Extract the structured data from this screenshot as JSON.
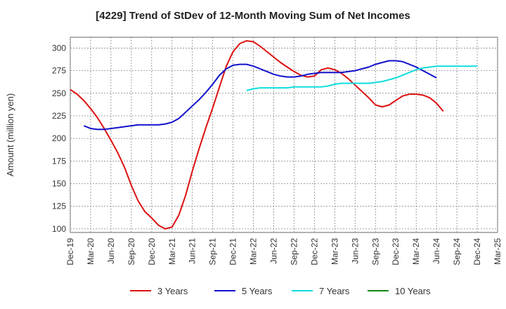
{
  "chart_data": {
    "type": "line",
    "title": "[4229]  Trend of StDev of 12-Month Moving Sum of Net Incomes",
    "ylabel": "Amount (million yen)",
    "xlabel": "",
    "ylim": [
      96,
      312
    ],
    "yticks": [
      100,
      125,
      150,
      175,
      200,
      225,
      250,
      275,
      300
    ],
    "x_ticks": [
      "Dec-19",
      "Mar-20",
      "Jun-20",
      "Sep-20",
      "Dec-20",
      "Mar-21",
      "Jun-21",
      "Sep-21",
      "Dec-21",
      "Mar-22",
      "Jun-22",
      "Sep-22",
      "Dec-22",
      "Mar-23",
      "Jun-23",
      "Sep-23",
      "Dec-23",
      "Mar-24",
      "Jun-24",
      "Sep-24",
      "Dec-24",
      "Mar-25"
    ],
    "grid": true,
    "legend_position": "bottom",
    "series": [
      {
        "name": "3 Years",
        "color": "#dd1111",
        "values": [
          {
            "x": "Dec-19",
            "y": 254
          },
          {
            "x": "Jan-20",
            "y": 249
          },
          {
            "x": "Feb-20",
            "y": 242
          },
          {
            "x": "Mar-20",
            "y": 233
          },
          {
            "x": "Apr-20",
            "y": 223
          },
          {
            "x": "May-20",
            "y": 211
          },
          {
            "x": "Jun-20",
            "y": 198
          },
          {
            "x": "Jul-20",
            "y": 184
          },
          {
            "x": "Aug-20",
            "y": 168
          },
          {
            "x": "Sep-20",
            "y": 148
          },
          {
            "x": "Oct-20",
            "y": 131
          },
          {
            "x": "Nov-20",
            "y": 119
          },
          {
            "x": "Dec-20",
            "y": 112
          },
          {
            "x": "Jan-21",
            "y": 104
          },
          {
            "x": "Feb-21",
            "y": 100
          },
          {
            "x": "Mar-21",
            "y": 102
          },
          {
            "x": "Apr-21",
            "y": 115
          },
          {
            "x": "May-21",
            "y": 137
          },
          {
            "x": "Jun-21",
            "y": 164
          },
          {
            "x": "Jul-21",
            "y": 189
          },
          {
            "x": "Aug-21",
            "y": 212
          },
          {
            "x": "Sep-21",
            "y": 234
          },
          {
            "x": "Oct-21",
            "y": 257
          },
          {
            "x": "Nov-21",
            "y": 280
          },
          {
            "x": "Dec-21",
            "y": 296
          },
          {
            "x": "Jan-22",
            "y": 305
          },
          {
            "x": "Feb-22",
            "y": 308
          },
          {
            "x": "Mar-22",
            "y": 307
          },
          {
            "x": "Apr-22",
            "y": 302
          },
          {
            "x": "May-22",
            "y": 296
          },
          {
            "x": "Jun-22",
            "y": 290
          },
          {
            "x": "Jul-22",
            "y": 284
          },
          {
            "x": "Aug-22",
            "y": 279
          },
          {
            "x": "Sep-22",
            "y": 274
          },
          {
            "x": "Oct-22",
            "y": 270
          },
          {
            "x": "Nov-22",
            "y": 268
          },
          {
            "x": "Dec-22",
            "y": 269
          },
          {
            "x": "Jan-23",
            "y": 276
          },
          {
            "x": "Feb-23",
            "y": 278
          },
          {
            "x": "Mar-23",
            "y": 276
          },
          {
            "x": "Apr-23",
            "y": 272
          },
          {
            "x": "May-23",
            "y": 266
          },
          {
            "x": "Jun-23",
            "y": 259
          },
          {
            "x": "Jul-23",
            "y": 252
          },
          {
            "x": "Aug-23",
            "y": 245
          },
          {
            "x": "Sep-23",
            "y": 237
          },
          {
            "x": "Oct-23",
            "y": 235
          },
          {
            "x": "Nov-23",
            "y": 237
          },
          {
            "x": "Dec-23",
            "y": 242
          },
          {
            "x": "Jan-24",
            "y": 247
          },
          {
            "x": "Feb-24",
            "y": 249
          },
          {
            "x": "Mar-24",
            "y": 249
          },
          {
            "x": "Apr-24",
            "y": 248
          },
          {
            "x": "May-24",
            "y": 245
          },
          {
            "x": "Jun-24",
            "y": 239
          },
          {
            "x": "Jul-24",
            "y": 230
          }
        ]
      },
      {
        "name": "5 Years",
        "color": "#1111cc",
        "values": [
          {
            "x": "Feb-20",
            "y": 214
          },
          {
            "x": "Mar-20",
            "y": 211
          },
          {
            "x": "Apr-20",
            "y": 210
          },
          {
            "x": "May-20",
            "y": 210
          },
          {
            "x": "Jun-20",
            "y": 211
          },
          {
            "x": "Jul-20",
            "y": 212
          },
          {
            "x": "Aug-20",
            "y": 213
          },
          {
            "x": "Sep-20",
            "y": 214
          },
          {
            "x": "Oct-20",
            "y": 215
          },
          {
            "x": "Nov-20",
            "y": 215
          },
          {
            "x": "Dec-20",
            "y": 215
          },
          {
            "x": "Jan-21",
            "y": 215
          },
          {
            "x": "Feb-21",
            "y": 216
          },
          {
            "x": "Mar-21",
            "y": 218
          },
          {
            "x": "Apr-21",
            "y": 222
          },
          {
            "x": "May-21",
            "y": 229
          },
          {
            "x": "Jun-21",
            "y": 236
          },
          {
            "x": "Jul-21",
            "y": 243
          },
          {
            "x": "Aug-21",
            "y": 251
          },
          {
            "x": "Sep-21",
            "y": 260
          },
          {
            "x": "Oct-21",
            "y": 270
          },
          {
            "x": "Nov-21",
            "y": 277
          },
          {
            "x": "Dec-21",
            "y": 281
          },
          {
            "x": "Jan-22",
            "y": 282
          },
          {
            "x": "Feb-22",
            "y": 282
          },
          {
            "x": "Mar-22",
            "y": 280
          },
          {
            "x": "Apr-22",
            "y": 277
          },
          {
            "x": "May-22",
            "y": 274
          },
          {
            "x": "Jun-22",
            "y": 271
          },
          {
            "x": "Jul-22",
            "y": 269
          },
          {
            "x": "Aug-22",
            "y": 268
          },
          {
            "x": "Sep-22",
            "y": 268
          },
          {
            "x": "Oct-22",
            "y": 269
          },
          {
            "x": "Nov-22",
            "y": 271
          },
          {
            "x": "Dec-22",
            "y": 272
          },
          {
            "x": "Jan-23",
            "y": 273
          },
          {
            "x": "Feb-23",
            "y": 273
          },
          {
            "x": "Mar-23",
            "y": 273
          },
          {
            "x": "Apr-23",
            "y": 273
          },
          {
            "x": "May-23",
            "y": 274
          },
          {
            "x": "Jun-23",
            "y": 275
          },
          {
            "x": "Jul-23",
            "y": 277
          },
          {
            "x": "Aug-23",
            "y": 279
          },
          {
            "x": "Sep-23",
            "y": 282
          },
          {
            "x": "Oct-23",
            "y": 284
          },
          {
            "x": "Nov-23",
            "y": 286
          },
          {
            "x": "Dec-23",
            "y": 286
          },
          {
            "x": "Jan-24",
            "y": 285
          },
          {
            "x": "Feb-24",
            "y": 282
          },
          {
            "x": "Mar-24",
            "y": 279
          },
          {
            "x": "Apr-24",
            "y": 275
          },
          {
            "x": "May-24",
            "y": 271
          },
          {
            "x": "Jun-24",
            "y": 267
          }
        ]
      },
      {
        "name": "7 Years",
        "color": "#11dddd",
        "values": [
          {
            "x": "Feb-22",
            "y": 253
          },
          {
            "x": "Mar-22",
            "y": 255
          },
          {
            "x": "Apr-22",
            "y": 256
          },
          {
            "x": "May-22",
            "y": 256
          },
          {
            "x": "Jun-22",
            "y": 256
          },
          {
            "x": "Jul-22",
            "y": 256
          },
          {
            "x": "Aug-22",
            "y": 256
          },
          {
            "x": "Sep-22",
            "y": 257
          },
          {
            "x": "Oct-22",
            "y": 257
          },
          {
            "x": "Nov-22",
            "y": 257
          },
          {
            "x": "Dec-22",
            "y": 257
          },
          {
            "x": "Jan-23",
            "y": 257
          },
          {
            "x": "Feb-23",
            "y": 258
          },
          {
            "x": "Mar-23",
            "y": 260
          },
          {
            "x": "Apr-23",
            "y": 261
          },
          {
            "x": "May-23",
            "y": 261
          },
          {
            "x": "Jun-23",
            "y": 261
          },
          {
            "x": "Jul-23",
            "y": 261
          },
          {
            "x": "Aug-23",
            "y": 261
          },
          {
            "x": "Sep-23",
            "y": 262
          },
          {
            "x": "Oct-23",
            "y": 263
          },
          {
            "x": "Nov-23",
            "y": 265
          },
          {
            "x": "Dec-23",
            "y": 267
          },
          {
            "x": "Jan-24",
            "y": 270
          },
          {
            "x": "Feb-24",
            "y": 273
          },
          {
            "x": "Mar-24",
            "y": 276
          },
          {
            "x": "Apr-24",
            "y": 278
          },
          {
            "x": "May-24",
            "y": 279
          },
          {
            "x": "Jun-24",
            "y": 280
          },
          {
            "x": "Jul-24",
            "y": 280
          },
          {
            "x": "Aug-24",
            "y": 280
          },
          {
            "x": "Sep-24",
            "y": 280
          },
          {
            "x": "Oct-24",
            "y": 280
          },
          {
            "x": "Nov-24",
            "y": 280
          },
          {
            "x": "Dec-24",
            "y": 280
          }
        ]
      },
      {
        "name": "10 Years",
        "color": "#118811",
        "values": []
      }
    ]
  }
}
